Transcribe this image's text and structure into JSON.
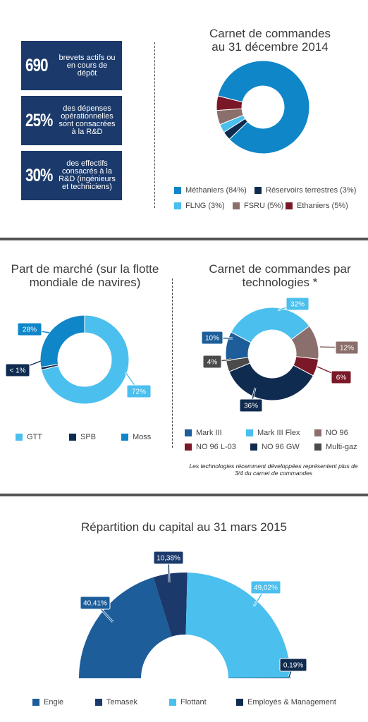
{
  "colors": {
    "navy": "#1b3a6b",
    "dark_navy": "#0f2b4f",
    "blue": "#0f86c8",
    "light_blue": "#4bbfee",
    "taupe": "#8b6f6c",
    "maroon": "#7a1828",
    "grey": "#4a4a4a",
    "mid_blue": "#1d5d99"
  },
  "stats": [
    {
      "big": "690",
      "text": "brevets actifs ou en cours de dépôt"
    },
    {
      "big": "25%",
      "text": "des dépenses opérationnelles sont consacrées à la R&D"
    },
    {
      "big": "30%",
      "text": "des effectifs consacrés à la R&D (ingénieurs et techniciens)"
    }
  ],
  "note": "Les technologies récemment développées représentent plus de 3/4 du carnet de commandes",
  "chart_data": [
    {
      "type": "pie",
      "subtype": "donut",
      "title": "Carnet de commandes au 31 décembre 2014",
      "series": [
        {
          "name": "Méthaniers (84%)",
          "value": 84,
          "color": "#0f86c8"
        },
        {
          "name": "Réservoirs terrestres (3%)",
          "value": 3,
          "color": "#0f2b4f"
        },
        {
          "name": "FLNG (3%)",
          "value": 3,
          "color": "#4bbfee"
        },
        {
          "name": "FSRU (5%)",
          "value": 5,
          "color": "#8b6f6c"
        },
        {
          "name": "Ethaniers (5%)",
          "value": 5,
          "color": "#7a1828"
        }
      ]
    },
    {
      "type": "pie",
      "subtype": "donut",
      "title": "Part de marché (sur la flotte mondiale de navires)",
      "series": [
        {
          "name": "GTT",
          "value": 72,
          "label": "72%",
          "color": "#4bbfee"
        },
        {
          "name": "SPB",
          "value": 1,
          "label": "< 1%",
          "color": "#0f2b4f"
        },
        {
          "name": "Moss",
          "value": 28,
          "label": "28%",
          "color": "#0f86c8"
        }
      ]
    },
    {
      "type": "pie",
      "subtype": "donut",
      "title": "Carnet de commandes par technologies *",
      "series": [
        {
          "name": "Mark III",
          "value": 10,
          "label": "10%",
          "color": "#1d5d99"
        },
        {
          "name": "Mark III Flex",
          "value": 32,
          "label": "32%",
          "color": "#4bbfee"
        },
        {
          "name": "NO 96",
          "value": 12,
          "label": "12%",
          "color": "#8b6f6c"
        },
        {
          "name": "NO 96 L-03",
          "value": 6,
          "label": "6%",
          "color": "#7a1828"
        },
        {
          "name": "NO 96 GW",
          "value": 36,
          "label": "36%",
          "color": "#0f2b4f"
        },
        {
          "name": "Multi-gaz",
          "value": 4,
          "label": "4%",
          "color": "#4a4a4a"
        }
      ]
    },
    {
      "type": "pie",
      "subtype": "half-donut",
      "title": "Répartition du capital au 31 mars 2015",
      "series": [
        {
          "name": "Engie",
          "value": 40.41,
          "label": "40,41%",
          "color": "#1d5d99"
        },
        {
          "name": "Temasek",
          "value": 10.38,
          "label": "10,38%",
          "color": "#1b3a6b"
        },
        {
          "name": "Flottant",
          "value": 49.02,
          "label": "49,02%",
          "color": "#4bbfee"
        },
        {
          "name": "Employés & Management",
          "value": 0.19,
          "label": "0,19%",
          "color": "#0f2b4f"
        }
      ]
    }
  ]
}
